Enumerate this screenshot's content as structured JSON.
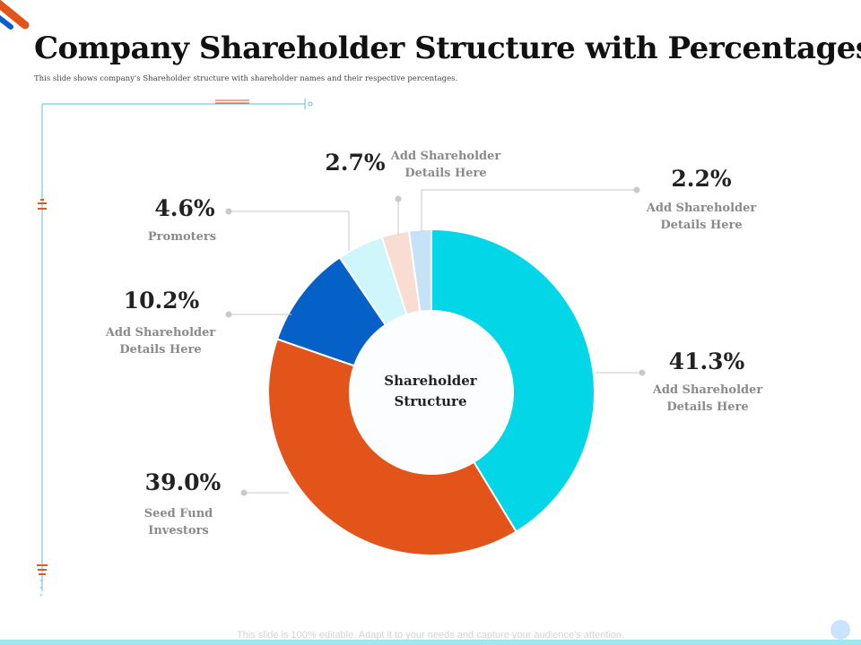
{
  "title": "Company Shareholder Structure with Percentages",
  "subtitle": "This slide shows company's Shareholder structure with shareholder names and their respective percentages.",
  "footer": "This slide is 100% editable. Adapt it to your needs and capture your audience's attention.",
  "colors": {
    "cyan": "#03d6e6",
    "orange": "#e3541a",
    "blue": "#0560c8",
    "light_cyan": "#cef6fb",
    "peach": "#f9dcd2",
    "light_blue": "#c6e2f7",
    "leader": "#c9c9c9",
    "frame_line": "#5bbfe6",
    "accent_orange": "#e05a1e"
  },
  "chart_data": {
    "type": "pie",
    "variant": "donut",
    "title": "Shareholder Structure",
    "center_label": "Shareholder\nStructure",
    "slices": [
      {
        "label": "Add Shareholder\nDetails Here",
        "value": 41.3,
        "display": "41.3%",
        "color": "#03d6e6"
      },
      {
        "label": "Seed Fund\nInvestors",
        "value": 39.0,
        "display": "39.0%",
        "color": "#e3541a"
      },
      {
        "label": "Add Shareholder\nDetails Here",
        "value": 10.2,
        "display": "10.2%",
        "color": "#0560c8"
      },
      {
        "label": "Promoters",
        "value": 4.6,
        "display": "4.6%",
        "color": "#cef6fb"
      },
      {
        "label": "Add Shareholder\nDetails Here",
        "value": 2.7,
        "display": "2.7%",
        "color": "#f9dcd2"
      },
      {
        "label": "Add Shareholder\nDetails Here",
        "value": 2.2,
        "display": "2.2%",
        "color": "#c6e2f7"
      }
    ]
  }
}
